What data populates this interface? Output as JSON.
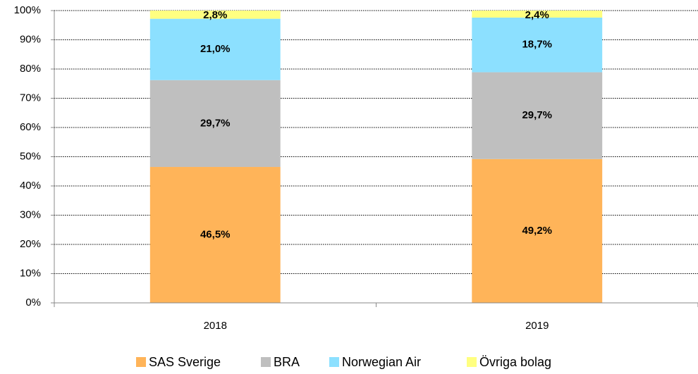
{
  "chart_data": {
    "type": "stacked_bar",
    "categories": [
      "2018",
      "2019"
    ],
    "series": [
      {
        "name": "SAS Sverige",
        "color": "#FFB459",
        "values": [
          46.5,
          49.2
        ],
        "value_labels": [
          "46,5%",
          "49,2%"
        ]
      },
      {
        "name": "BRA",
        "color": "#BFBFBF",
        "values": [
          29.7,
          29.7
        ],
        "value_labels": [
          "29,7%",
          "29,7%"
        ]
      },
      {
        "name": "Norwegian Air",
        "color": "#8CE0FF",
        "values": [
          21.0,
          18.7
        ],
        "value_labels": [
          "21,0%",
          "18,7%"
        ]
      },
      {
        "name": "Övriga bolag",
        "color": "#FFFF80",
        "values": [
          2.8,
          2.4
        ],
        "value_labels": [
          "2,8%",
          "2,4%"
        ]
      }
    ],
    "ylim": [
      0,
      100
    ],
    "yticks": [
      {
        "value": 0,
        "label": "0%"
      },
      {
        "value": 10,
        "label": "10%"
      },
      {
        "value": 20,
        "label": "20%"
      },
      {
        "value": 30,
        "label": "30%"
      },
      {
        "value": 40,
        "label": "40%"
      },
      {
        "value": 50,
        "label": "50%"
      },
      {
        "value": 60,
        "label": "60%"
      },
      {
        "value": 70,
        "label": "70%"
      },
      {
        "value": 80,
        "label": "80%"
      },
      {
        "value": 90,
        "label": "90%"
      },
      {
        "value": 100,
        "label": "100%"
      }
    ],
    "grid": true,
    "legend": "bottom"
  }
}
